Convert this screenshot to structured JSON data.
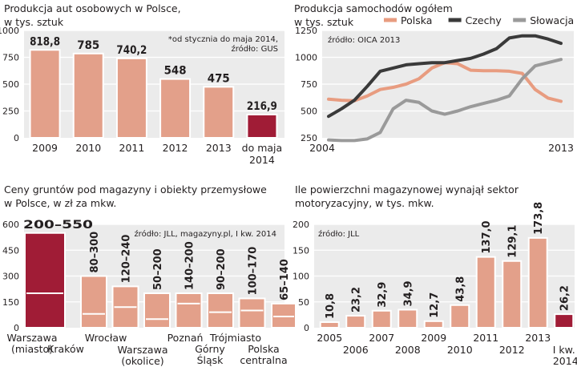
{
  "colors": {
    "bar": "#e3a08a",
    "bar_highlight": "#a01c36",
    "plot_bg": "#ebebeb",
    "grid": "#ffffff",
    "text": "#231f20",
    "series_polska": "#e89c80",
    "series_czechy": "#3a3a3a",
    "series_slowacja": "#9a9a9a",
    "range_line": "#ffffff"
  },
  "chart_data": [
    {
      "id": "production",
      "type": "bar",
      "title_line1": "Produkcja aut osobowych w Polsce,",
      "title_line2": "w tys. sztuk",
      "note_line1": "*od stycznia  do maja 2014,",
      "note_line2": "źródło: GUS",
      "ylim": [
        0,
        1000
      ],
      "yticks": [
        0,
        250,
        500,
        750,
        1000
      ],
      "categories": [
        "2009",
        "2010",
        "2011",
        "2012",
        "2013",
        "do maja"
      ],
      "category_line2": [
        "",
        "",
        "",
        "",
        "",
        "2014"
      ],
      "values": [
        818.8,
        785,
        740.2,
        548,
        475,
        216.9
      ],
      "value_labels": [
        "818,8",
        "785",
        "740,2",
        "548",
        "475",
        "216,9"
      ],
      "highlight": [
        false,
        false,
        false,
        false,
        false,
        true
      ]
    },
    {
      "id": "oica",
      "type": "line",
      "title_line1": "Produkcja samochodów ogółem",
      "title_line2": "w tys. sztuk",
      "source": "źródło: OICA 2013",
      "ylim": [
        250,
        1250
      ],
      "yticks": [
        250,
        500,
        750,
        1000,
        1250
      ],
      "x_start": 2004,
      "x_end": 2013,
      "x_labels": [
        "2004",
        "2013"
      ],
      "series": [
        {
          "name": "Polska",
          "color_key": "series_polska",
          "x": [
            2004,
            2004.5,
            2005,
            2005.5,
            2006,
            2006.5,
            2007,
            2007.5,
            2008,
            2008.5,
            2009,
            2009.5,
            2010,
            2010.5,
            2011,
            2011.5,
            2012,
            2012.5,
            2013
          ],
          "values": [
            610,
            600,
            595,
            640,
            700,
            720,
            750,
            800,
            900,
            950,
            940,
            880,
            875,
            875,
            870,
            850,
            700,
            620,
            590
          ]
        },
        {
          "name": "Czechy",
          "color_key": "series_czechy",
          "x": [
            2004,
            2004.5,
            2005,
            2005.5,
            2006,
            2006.5,
            2007,
            2007.5,
            2008,
            2008.5,
            2009,
            2009.5,
            2010,
            2010.5,
            2011,
            2011.5,
            2012,
            2012.5,
            2013
          ],
          "values": [
            450,
            520,
            600,
            730,
            870,
            900,
            930,
            940,
            950,
            950,
            970,
            990,
            1030,
            1080,
            1180,
            1200,
            1200,
            1170,
            1130
          ]
        },
        {
          "name": "Słowacja",
          "color_key": "series_slowacja",
          "x": [
            2004,
            2004.5,
            2005,
            2005.5,
            2006,
            2006.5,
            2007,
            2007.5,
            2008,
            2008.5,
            2009,
            2009.5,
            2010,
            2010.5,
            2011,
            2011.5,
            2012,
            2012.5,
            2013
          ],
          "values": [
            230,
            225,
            225,
            240,
            300,
            520,
            600,
            580,
            500,
            470,
            500,
            540,
            570,
            600,
            640,
            800,
            920,
            950,
            980
          ]
        }
      ]
    },
    {
      "id": "land_prices",
      "type": "bar",
      "title_line1": "Ceny gruntów pod magazyny i obiekty przemysłowe",
      "title_line2": "w Polsce, w zł za mkw.",
      "source": "źródło: JLL, magazyny.pl, I kw. 2014",
      "ylim": [
        0,
        600
      ],
      "yticks": [
        0,
        150,
        300,
        450,
        600
      ],
      "categories": [
        {
          "line1": "Warszawa",
          "line2": "(miasto)"
        },
        {
          "line1": "Kraków",
          "line2": ""
        },
        {
          "line1": "Wrocław",
          "line2": ""
        },
        {
          "line1": "Warszawa",
          "line2": "(okolice)"
        },
        {
          "line1": "Poznań",
          "line2": ""
        },
        {
          "line1": "Górny",
          "line2": "Śląsk"
        },
        {
          "line1": "Trójmiasto",
          "line2": ""
        },
        {
          "line1": "Polska",
          "line2": "centralna"
        }
      ],
      "range_min": [
        200,
        80,
        120,
        50,
        140,
        90,
        100,
        65
      ],
      "range_max": [
        550,
        300,
        240,
        200,
        200,
        200,
        170,
        140
      ],
      "range_labels": [
        "200–550",
        "80–300",
        "120–240",
        "50–200",
        "140–200",
        "90–200",
        "100–170",
        "65–140"
      ],
      "highlight": [
        true,
        false,
        false,
        false,
        false,
        false,
        false,
        false
      ]
    },
    {
      "id": "leased_space",
      "type": "bar",
      "title_line1": "Ile powierzchni magazynowej wynajął sektor",
      "title_line2": "motoryzacyjny, w tys. mkw.",
      "source": "źródło: JLL",
      "ylim": [
        0,
        200
      ],
      "yticks": [
        0,
        50,
        100,
        150,
        200
      ],
      "categories": [
        "2005",
        "2006",
        "2007",
        "2008",
        "2009",
        "2010",
        "2011",
        "2012",
        "2013",
        "I kw."
      ],
      "category_line2": [
        "",
        "",
        "",
        "",
        "",
        "",
        "",
        "",
        "",
        "2014"
      ],
      "values": [
        10.8,
        23.2,
        32.9,
        34.9,
        12.7,
        43.8,
        137.0,
        129.1,
        173.8,
        26.2
      ],
      "value_labels": [
        "10,8",
        "23,2",
        "32,9",
        "34,9",
        "12,7",
        "43,8",
        "137,0",
        "129,1",
        "173,8",
        "26,2"
      ],
      "highlight": [
        false,
        false,
        false,
        false,
        false,
        false,
        false,
        false,
        false,
        true
      ]
    }
  ]
}
